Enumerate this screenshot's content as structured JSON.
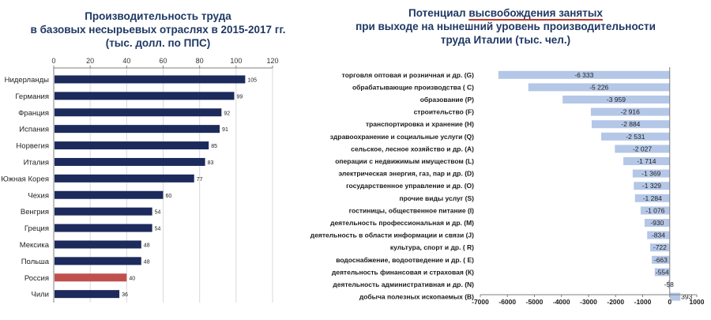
{
  "left_title": {
    "line1": "Производительность труда",
    "line2": "в базовых несырьевых отраслях в 2015-2017 гг.",
    "line3": "(тыс. долл. по ППС)"
  },
  "right_title": {
    "prefix": "Потенциал ",
    "highlight": "высвобождения занятых",
    "line2": "при выходе на нынешний уровень производительности",
    "line3": "труда Италии (тыс. чел.)"
  },
  "colors": {
    "bar": "#1c2a5c",
    "highlight_bar": "#c0504d",
    "right_bar": "#b4c7e7",
    "title": "#1f3864"
  },
  "chart_data": [
    {
      "type": "bar",
      "orientation": "horizontal",
      "title": "Производительность труда в базовых несырьевых отраслях в 2015-2017 гг. (тыс. долл. по ППС)",
      "categories": [
        "Нидерланды",
        "Германия",
        "Франция",
        "Испания",
        "Норвегия",
        "Италия",
        "Южная Корея",
        "Чехия",
        "Венгрия",
        "Греция",
        "Мексика",
        "Польша",
        "Россия",
        "Чили"
      ],
      "values": [
        105,
        99,
        92,
        91,
        85,
        83,
        77,
        60,
        54,
        54,
        48,
        48,
        40,
        36
      ],
      "highlight": "Россия",
      "xlim": [
        0,
        120
      ],
      "xticks": [
        0,
        20,
        40,
        60,
        80,
        100,
        120
      ],
      "axis_position": "top",
      "grid": true
    },
    {
      "type": "bar",
      "orientation": "horizontal",
      "title": "Потенциал высвобождения занятых при выходе на нынешний уровень производительности труда Италии (тыс. чел.)",
      "categories": [
        "торговля оптовая и розничная и др. (G)",
        "обрабатывающие производства ( С)",
        "образование (P)",
        "строительство (F)",
        "транспортировка и хранение (H)",
        "здравоохранение и социальные услуги (Q)",
        "сельское, лесное хозяйство и др. (А)",
        "операции с недвижимым имуществом (L)",
        "электрическая энергия, газ, пар и др. (D)",
        "государственное управление и др. (О)",
        "прочие виды услуг (S)",
        "гостиницы, общественное питание (I)",
        "деятельность профессиональная и др. (М)",
        "деятельность в области информации и связи (J)",
        "культура, спорт и др. ( R)",
        "водоснабжение, водоотведение и др. ( Е)",
        "деятельность финансовая и страховая (К)",
        "деятельность административная и др. (N)",
        "добыча полезных ископаемых (B)"
      ],
      "values": [
        -6333,
        -5226,
        -3959,
        -2916,
        -2884,
        -2531,
        -2027,
        -1714,
        -1369,
        -1329,
        -1284,
        -1076,
        -930,
        -834,
        -722,
        -663,
        -554,
        -58,
        393
      ],
      "value_labels": [
        "-6 333",
        "-5 226",
        "-3 959",
        "-2 916",
        "-2 884",
        "-2 531",
        "-2 027",
        "-1 714",
        "-1 369",
        "-1 329",
        "-1 284",
        "-1 076",
        "-930",
        "-834",
        "-722",
        "-663",
        "-554",
        "-58",
        "393"
      ],
      "xlim": [
        -7000,
        1000
      ],
      "xticks": [
        -7000,
        -6000,
        -5000,
        -4000,
        -3000,
        -2000,
        -1000,
        0,
        1000
      ],
      "axis_position": "bottom",
      "grid": false
    }
  ]
}
